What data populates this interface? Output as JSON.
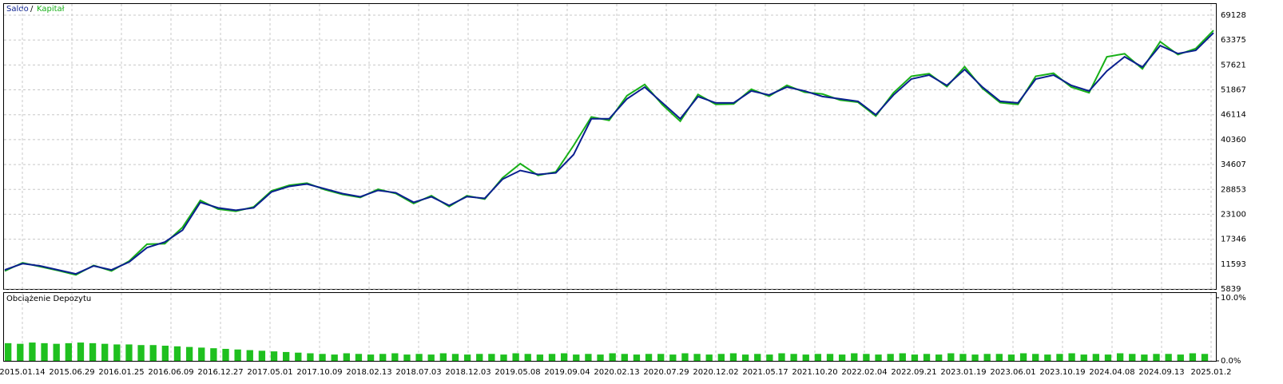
{
  "chart_data": [
    {
      "type": "line",
      "series": [
        {
          "name": "Saldo",
          "color": "#0a1f8f",
          "values": [
            10250,
            11720,
            11170,
            10250,
            9330,
            11170,
            10250,
            12090,
            15400,
            16680,
            19440,
            25870,
            24590,
            24040,
            24590,
            28260,
            29550,
            30100,
            29000,
            27890,
            27160,
            28630,
            28080,
            25870,
            27160,
            25140,
            27200,
            26790,
            31200,
            33230,
            32310,
            32670,
            36900,
            45170,
            45170,
            49770,
            52500,
            48840,
            45170,
            50320,
            48840,
            48840,
            51600,
            50680,
            52500,
            51600,
            50320,
            49770,
            49210,
            46090,
            50680,
            54360,
            55280,
            52890,
            56560,
            52500,
            49210,
            48840,
            54360,
            55280,
            52890,
            51600,
            56200,
            59510,
            57120,
            62080,
            60240,
            60980,
            65020
          ]
        },
        {
          "name": "Kapitał",
          "color": "#18b018",
          "values": [
            10000,
            11900,
            11000,
            10100,
            9100,
            11300,
            10000,
            12300,
            16200,
            16300,
            20100,
            26300,
            24300,
            23800,
            24800,
            28500,
            29800,
            30300,
            28800,
            27700,
            27000,
            28900,
            27900,
            25600,
            27400,
            24900,
            27400,
            26600,
            31500,
            34800,
            32100,
            32900,
            39000,
            45600,
            44800,
            50500,
            53100,
            48400,
            44600,
            50800,
            48500,
            48600,
            52000,
            50400,
            52900,
            51300,
            50900,
            49500,
            49000,
            45800,
            51200,
            55000,
            55600,
            52600,
            57200,
            52200,
            48900,
            48500,
            55000,
            55700,
            52500,
            51200,
            59500,
            60200,
            56700,
            63000,
            60000,
            61400,
            65600
          ]
        }
      ],
      "ylim": [
        5839,
        71700
      ],
      "yticks": [
        5839,
        11593,
        17346,
        23100,
        28853,
        34607,
        40360,
        46114,
        51867,
        57621,
        63375,
        69128
      ],
      "x_labels": [
        "2015.01.14",
        "2015.06.29",
        "2016.01.25",
        "2016.06.09",
        "2016.12.27",
        "2017.05.01",
        "2017.10.09",
        "2018.02.13",
        "2018.07.03",
        "2018.12.03",
        "2019.05.08",
        "2019.09.04",
        "2020.02.13",
        "2020.07.29",
        "2020.12.02",
        "2021.05.17",
        "2021.10.20",
        "2022.02.04",
        "2022.09.21",
        "2023.01.19",
        "2023.06.01",
        "2023.10.19",
        "2024.04.08",
        "2024.09.13",
        "2025.01.2"
      ],
      "grid": true
    },
    {
      "type": "bar",
      "title": "Obciążenie Depozytu",
      "color": "#1fc01f",
      "values": [
        2.8,
        2.7,
        2.9,
        2.8,
        2.7,
        2.8,
        2.9,
        2.8,
        2.7,
        2.6,
        2.6,
        2.5,
        2.5,
        2.4,
        2.3,
        2.2,
        2.1,
        2.0,
        1.9,
        1.8,
        1.7,
        1.6,
        1.5,
        1.4,
        1.3,
        1.2,
        1.1,
        1.0,
        1.2,
        1.1,
        1.0,
        1.1,
        1.2,
        1.0,
        1.1,
        1.0,
        1.2,
        1.1,
        1.0,
        1.1,
        1.1,
        1.0,
        1.2,
        1.1,
        1.0,
        1.1,
        1.2,
        1.0,
        1.1,
        1.0,
        1.2,
        1.1,
        1.0,
        1.1,
        1.1,
        1.0,
        1.2,
        1.1,
        1.0,
        1.1,
        1.2,
        1.0,
        1.1,
        1.0,
        1.2,
        1.1,
        1.0,
        1.1,
        1.1,
        1.0,
        1.2,
        1.1,
        1.0,
        1.1,
        1.2,
        1.0,
        1.1,
        1.0,
        1.2,
        1.1,
        1.0,
        1.1,
        1.1,
        1.0,
        1.2,
        1.1,
        1.0,
        1.1,
        1.2,
        1.0,
        1.1,
        1.0,
        1.2,
        1.1,
        1.0,
        1.1,
        1.1,
        1.0,
        1.2,
        1.1
      ],
      "ylim": [
        0,
        10.75
      ],
      "yticks": [
        {
          "value": 0,
          "label": "0.0%"
        },
        {
          "value": 10,
          "label": "10.0%"
        }
      ]
    }
  ]
}
